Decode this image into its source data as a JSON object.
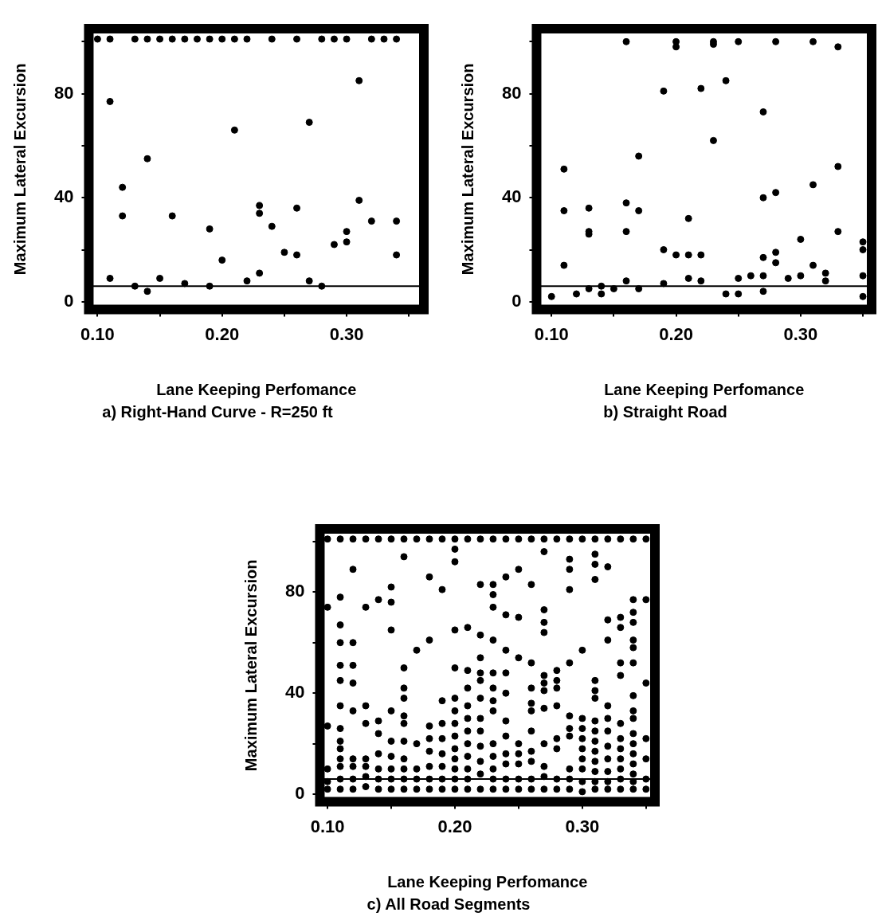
{
  "chart_data": [
    {
      "type": "scatter",
      "title": "a) Right-Hand Curve - R=250 ft",
      "xlabel": "Lane Keeping Perfomance",
      "ylabel": "Maximum Lateral Excursion",
      "color": "#000000",
      "marker": "circle",
      "x": [
        0.1,
        0.11,
        0.13,
        0.14,
        0.15,
        0.16,
        0.17,
        0.18,
        0.19,
        0.2,
        0.21,
        0.22,
        0.24,
        0.26,
        0.28,
        0.29,
        0.3,
        0.32,
        0.33,
        0.34,
        0.11,
        0.12,
        0.12,
        0.11,
        0.14,
        0.16,
        0.13,
        0.14,
        0.15,
        0.17,
        0.19,
        0.19,
        0.2,
        0.21,
        0.22,
        0.23,
        0.23,
        0.23,
        0.24,
        0.25,
        0.26,
        0.26,
        0.27,
        0.27,
        0.28,
        0.29,
        0.3,
        0.3,
        0.31,
        0.31,
        0.32,
        0.34,
        0.34
      ],
      "values": [
        101,
        101,
        101,
        101,
        101,
        101,
        101,
        101,
        101,
        101,
        101,
        101,
        101,
        101,
        101,
        101,
        101,
        101,
        101,
        101,
        77,
        44,
        33,
        9,
        55,
        33,
        6,
        4,
        9,
        7,
        6,
        28,
        16,
        66,
        8,
        37,
        34,
        11,
        29,
        19,
        36,
        18,
        69,
        8,
        6,
        22,
        23,
        27,
        85,
        39,
        31,
        31,
        18
      ],
      "xlim": [
        0.093,
        0.362
      ],
      "ylim": [
        -3,
        105
      ],
      "xticks": [
        {
          "value": 0.1,
          "label": "0.10"
        },
        {
          "value": 0.15,
          "label": null
        },
        {
          "value": 0.2,
          "label": "0.20"
        },
        {
          "value": 0.25,
          "label": null
        },
        {
          "value": 0.3,
          "label": "0.30"
        },
        {
          "value": 0.35,
          "label": null
        }
      ],
      "yticks": [
        0,
        {
          "value": 20,
          "label": null
        },
        40,
        {
          "value": 60,
          "label": null
        },
        80,
        {
          "value": 100,
          "label": null
        }
      ],
      "ref_lines": [
        {
          "axis": "y",
          "value": 6,
          "color": "#000000"
        }
      ]
    },
    {
      "type": "scatter",
      "title": "b) Straight Road",
      "xlabel": "Lane Keeping Perfomance",
      "ylabel": "Maximum Lateral Excursion",
      "color": "#000000",
      "marker": "circle",
      "x": [
        0.1,
        0.11,
        0.11,
        0.11,
        0.12,
        0.13,
        0.13,
        0.13,
        0.13,
        0.14,
        0.14,
        0.15,
        0.16,
        0.16,
        0.16,
        0.16,
        0.17,
        0.17,
        0.17,
        0.19,
        0.19,
        0.19,
        0.2,
        0.2,
        0.2,
        0.21,
        0.21,
        0.21,
        0.22,
        0.22,
        0.22,
        0.23,
        0.23,
        0.23,
        0.24,
        0.24,
        0.25,
        0.25,
        0.25,
        0.26,
        0.27,
        0.27,
        0.27,
        0.27,
        0.27,
        0.28,
        0.28,
        0.28,
        0.28,
        0.29,
        0.3,
        0.3,
        0.31,
        0.31,
        0.31,
        0.32,
        0.32,
        0.33,
        0.33,
        0.33,
        0.35,
        0.35,
        0.35,
        0.35
      ],
      "values": [
        2,
        51,
        35,
        14,
        3,
        36,
        27,
        26,
        5,
        6,
        3,
        5,
        100,
        38,
        27,
        8,
        56,
        35,
        5,
        81,
        20,
        7,
        100,
        98,
        18,
        32,
        18,
        9,
        82,
        18,
        8,
        100,
        99,
        62,
        85,
        3,
        100,
        9,
        3,
        10,
        73,
        40,
        17,
        10,
        4,
        100,
        42,
        19,
        15,
        9,
        24,
        10,
        100,
        45,
        14,
        11,
        8,
        98,
        52,
        27,
        23,
        20,
        10,
        2
      ],
      "xlim": [
        0.088,
        0.357
      ],
      "ylim": [
        -3,
        105
      ],
      "xticks": [
        {
          "value": 0.1,
          "label": "0.10"
        },
        {
          "value": 0.15,
          "label": null
        },
        {
          "value": 0.2,
          "label": "0.20"
        },
        {
          "value": 0.25,
          "label": null
        },
        {
          "value": 0.3,
          "label": "0.30"
        },
        {
          "value": 0.35,
          "label": null
        }
      ],
      "yticks": [
        0,
        {
          "value": 20,
          "label": null
        },
        40,
        {
          "value": 60,
          "label": null
        },
        80,
        {
          "value": 100,
          "label": null
        }
      ],
      "ref_lines": [
        {
          "axis": "y",
          "value": 6,
          "color": "#000000"
        }
      ]
    },
    {
      "type": "scatter",
      "title": "c) All Road Segments",
      "xlabel": "Lane Keeping Perfomance",
      "ylabel": "Maximum Lateral Excursion",
      "color": "#000000",
      "marker": "circle",
      "x": [
        0.1,
        0.1,
        0.1,
        0.1,
        0.1,
        0.1,
        0.11,
        0.11,
        0.11,
        0.11,
        0.11,
        0.11,
        0.11,
        0.11,
        0.11,
        0.11,
        0.11,
        0.11,
        0.11,
        0.11,
        0.12,
        0.12,
        0.12,
        0.12,
        0.12,
        0.12,
        0.12,
        0.12,
        0.12,
        0.12,
        0.13,
        0.13,
        0.13,
        0.13,
        0.13,
        0.13,
        0.13,
        0.13,
        0.14,
        0.14,
        0.14,
        0.14,
        0.14,
        0.14,
        0.14,
        0.14,
        0.15,
        0.15,
        0.15,
        0.15,
        0.15,
        0.15,
        0.15,
        0.15,
        0.15,
        0.15,
        0.16,
        0.16,
        0.16,
        0.16,
        0.16,
        0.16,
        0.16,
        0.16,
        0.16,
        0.16,
        0.16,
        0.16,
        0.17,
        0.17,
        0.17,
        0.17,
        0.17,
        0.17,
        0.18,
        0.18,
        0.18,
        0.18,
        0.18,
        0.18,
        0.18,
        0.18,
        0.18,
        0.19,
        0.19,
        0.19,
        0.19,
        0.19,
        0.19,
        0.19,
        0.19,
        0.19,
        0.2,
        0.2,
        0.2,
        0.2,
        0.2,
        0.2,
        0.2,
        0.2,
        0.2,
        0.2,
        0.2,
        0.2,
        0.2,
        0.2,
        0.21,
        0.21,
        0.21,
        0.21,
        0.21,
        0.21,
        0.21,
        0.21,
        0.21,
        0.21,
        0.21,
        0.21,
        0.22,
        0.22,
        0.22,
        0.22,
        0.22,
        0.22,
        0.22,
        0.22,
        0.22,
        0.22,
        0.22,
        0.22,
        0.22,
        0.23,
        0.23,
        0.23,
        0.23,
        0.23,
        0.23,
        0.23,
        0.23,
        0.23,
        0.23,
        0.23,
        0.23,
        0.23,
        0.23,
        0.24,
        0.24,
        0.24,
        0.24,
        0.24,
        0.24,
        0.24,
        0.24,
        0.24,
        0.24,
        0.24,
        0.24,
        0.25,
        0.25,
        0.25,
        0.25,
        0.25,
        0.25,
        0.25,
        0.25,
        0.25,
        0.26,
        0.26,
        0.26,
        0.26,
        0.26,
        0.26,
        0.26,
        0.26,
        0.26,
        0.26,
        0.26,
        0.27,
        0.27,
        0.27,
        0.27,
        0.27,
        0.27,
        0.27,
        0.27,
        0.27,
        0.27,
        0.27,
        0.27,
        0.27,
        0.28,
        0.28,
        0.28,
        0.28,
        0.28,
        0.28,
        0.28,
        0.28,
        0.28,
        0.29,
        0.29,
        0.29,
        0.29,
        0.29,
        0.29,
        0.29,
        0.29,
        0.29,
        0.29,
        0.29,
        0.3,
        0.3,
        0.3,
        0.3,
        0.3,
        0.3,
        0.3,
        0.3,
        0.3,
        0.3,
        0.31,
        0.31,
        0.31,
        0.31,
        0.31,
        0.31,
        0.31,
        0.31,
        0.31,
        0.31,
        0.31,
        0.31,
        0.31,
        0.31,
        0.31,
        0.32,
        0.32,
        0.32,
        0.32,
        0.32,
        0.32,
        0.32,
        0.32,
        0.32,
        0.32,
        0.32,
        0.32,
        0.33,
        0.33,
        0.33,
        0.33,
        0.33,
        0.33,
        0.33,
        0.33,
        0.33,
        0.33,
        0.33,
        0.33,
        0.34,
        0.34,
        0.34,
        0.34,
        0.34,
        0.34,
        0.34,
        0.34,
        0.34,
        0.34,
        0.34,
        0.34,
        0.34,
        0.34,
        0.34,
        0.34,
        0.34,
        0.35,
        0.35,
        0.35,
        0.35,
        0.35,
        0.35,
        0.35
      ],
      "values": [
        101,
        74,
        27,
        10,
        5,
        2,
        101,
        78,
        67,
        60,
        51,
        45,
        35,
        26,
        21,
        18,
        14,
        11,
        6,
        2,
        101,
        89,
        60,
        51,
        44,
        33,
        14,
        11,
        6,
        2,
        101,
        74,
        35,
        28,
        14,
        11,
        7,
        3,
        101,
        77,
        29,
        24,
        16,
        10,
        6,
        2,
        101,
        82,
        76,
        65,
        33,
        21,
        15,
        10,
        6,
        2,
        101,
        94,
        50,
        42,
        38,
        31,
        28,
        21,
        14,
        10,
        6,
        2,
        101,
        57,
        20,
        10,
        6,
        2,
        101,
        86,
        61,
        27,
        22,
        17,
        11,
        6,
        2,
        101,
        81,
        37,
        28,
        22,
        16,
        11,
        6,
        2,
        101,
        97,
        92,
        65,
        50,
        38,
        33,
        28,
        23,
        18,
        14,
        10,
        6,
        2,
        101,
        66,
        49,
        42,
        35,
        30,
        25,
        20,
        15,
        10,
        6,
        2,
        101,
        83,
        63,
        54,
        48,
        45,
        38,
        30,
        25,
        19,
        13,
        8,
        2,
        101,
        83,
        79,
        74,
        61,
        48,
        42,
        37,
        33,
        20,
        15,
        10,
        6,
        2,
        101,
        86,
        71,
        57,
        48,
        40,
        29,
        23,
        16,
        12,
        6,
        2,
        101,
        89,
        70,
        54,
        20,
        16,
        12,
        6,
        2,
        101,
        83,
        52,
        42,
        36,
        33,
        25,
        17,
        13,
        6,
        2,
        101,
        96,
        73,
        68,
        64,
        47,
        44,
        41,
        34,
        20,
        11,
        7,
        2,
        101,
        49,
        45,
        42,
        35,
        22,
        18,
        6,
        2,
        101,
        93,
        89,
        81,
        52,
        31,
        26,
        23,
        10,
        6,
        2,
        101,
        57,
        30,
        26,
        22,
        18,
        14,
        10,
        5,
        1,
        101,
        95,
        91,
        85,
        45,
        41,
        38,
        29,
        25,
        21,
        17,
        13,
        9,
        5,
        2,
        101,
        90,
        69,
        61,
        35,
        30,
        25,
        19,
        14,
        9,
        5,
        2,
        101,
        70,
        66,
        52,
        47,
        28,
        22,
        18,
        14,
        10,
        6,
        2,
        101,
        77,
        72,
        68,
        61,
        58,
        52,
        39,
        33,
        30,
        24,
        20,
        16,
        12,
        8,
        5,
        2,
        101,
        77,
        44,
        22,
        14,
        6,
        2
      ],
      "xlim": [
        0.094,
        0.357
      ],
      "ylim": [
        -3,
        105
      ],
      "xticks": [
        {
          "value": 0.1,
          "label": "0.10"
        },
        {
          "value": 0.15,
          "label": null
        },
        {
          "value": 0.2,
          "label": "0.20"
        },
        {
          "value": 0.25,
          "label": null
        },
        {
          "value": 0.3,
          "label": "0.30"
        },
        {
          "value": 0.35,
          "label": null
        }
      ],
      "yticks": [
        0,
        {
          "value": 20,
          "label": null
        },
        40,
        {
          "value": 60,
          "label": null
        },
        80,
        {
          "value": 100,
          "label": null
        }
      ],
      "ref_lines": [
        {
          "axis": "y",
          "value": 6,
          "color": "#000000"
        }
      ]
    }
  ]
}
